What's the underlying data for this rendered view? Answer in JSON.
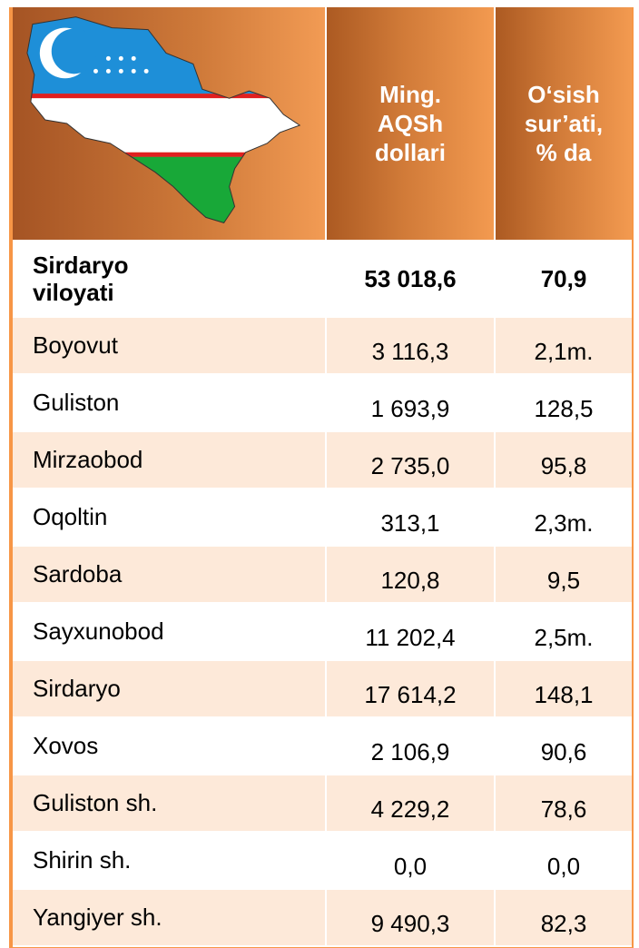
{
  "table": {
    "header": [
      [
        "Ming.",
        "AQSh",
        "dollari"
      ],
      [
        "O‘sish",
        "sur’ati,",
        "% da"
      ]
    ],
    "total": [
      "Sirdaryo viloyati",
      "53 018,6",
      "70,9"
    ],
    "rows": [
      [
        "Boyovut",
        "3 116,3",
        "2,1m."
      ],
      [
        "Guliston",
        "1 693,9",
        "128,5"
      ],
      [
        "Mirzaobod",
        "2 735,0",
        "95,8"
      ],
      [
        "Oqoltin",
        "313,1",
        "2,3m."
      ],
      [
        "Sardoba",
        "120,8",
        "9,5"
      ],
      [
        "Sayxunobod",
        "11 202,4",
        "2,5m."
      ],
      [
        "Sirdaryo",
        "17 614,2",
        "148,1"
      ],
      [
        "Xovos",
        "2 106,9",
        "90,6"
      ],
      [
        "Guliston sh.",
        "4 229,2",
        "78,6"
      ],
      [
        "Shirin sh.",
        "0,0",
        "0,0"
      ],
      [
        "Yangiyer sh.",
        "9 490,3",
        "82,3"
      ]
    ]
  }
}
